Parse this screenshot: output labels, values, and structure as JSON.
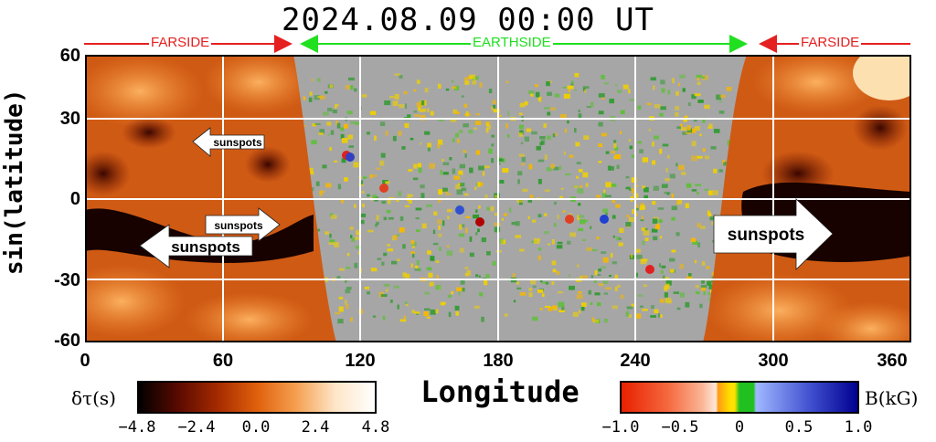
{
  "title": "2024.08.09  00:00  UT",
  "zones": [
    {
      "label": "FARSIDE",
      "color": "#e52020"
    },
    {
      "label": "EARTHSIDE",
      "color": "#20e020"
    },
    {
      "label": "FARSIDE",
      "color": "#e52020"
    }
  ],
  "axes": {
    "ylabel": "sin(latitude)",
    "xlabel": "Longitude",
    "yticks": [
      "60",
      "30",
      "0",
      "-30",
      "-60"
    ],
    "xticks": [
      "0",
      "60",
      "120",
      "180",
      "240",
      "300",
      "360"
    ]
  },
  "annotations": {
    "sunspots_label": "sunspots"
  },
  "colorbars": {
    "left": {
      "label": "δτ(s)",
      "ticks": [
        "−4.8",
        "−2.4",
        "0.0",
        "2.4",
        "4.8"
      ],
      "colors": [
        "#000000",
        "#5a0a00",
        "#a52a00",
        "#e0600c",
        "#f5a050",
        "#fde6c8",
        "#ffffff"
      ]
    },
    "right": {
      "label": "B(kG)",
      "ticks": [
        "−1.0",
        "−0.5",
        "0",
        "0.5",
        "1.0"
      ],
      "colors": [
        "#e82000",
        "#f56a40",
        "#fab494",
        "#ffe8d8",
        "#ff9a10",
        "#ffe000",
        "#20c020",
        "#a0b8ff",
        "#4050d0",
        "#000090"
      ]
    }
  }
}
